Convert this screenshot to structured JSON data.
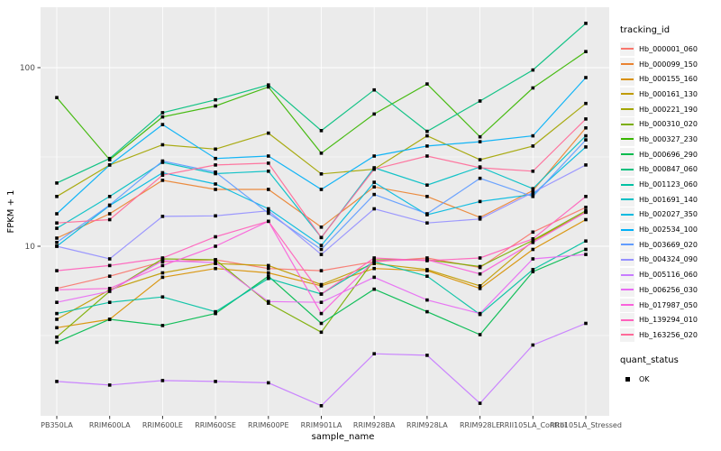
{
  "chart_data": {
    "type": "line",
    "title": "",
    "xlabel": "sample_name",
    "ylabel": "FPKM + 1",
    "y_scale": "log10",
    "y_ticks": [
      10,
      100
    ],
    "y_minor_gridlines": [
      3.162,
      31.62
    ],
    "ylim": [
      1.1,
      215
    ],
    "grid": true,
    "panel_bg": "#EBEBEB",
    "grid_color": "#FFFFFF",
    "point_marker": "black-square",
    "legend_position": "right",
    "legend_title": "tracking_id",
    "categories": [
      "PB350LA",
      "RRIM600LA",
      "RRIM600LE",
      "RRIM600SE",
      "RRIM600PE",
      "RRIM901LA",
      "RRIM928BA",
      "RRIM928LA",
      "RRIM928LE",
      "RRII105LA_Control",
      "RRII105LA_Stressed"
    ],
    "series": [
      {
        "name": "Hb_000001_060",
        "color": "#F8766D",
        "values": [
          5.8,
          6.8,
          8.2,
          8.4,
          7.5,
          7.3,
          8.2,
          8.6,
          7.6,
          12.0,
          16.5
        ]
      },
      {
        "name": "Hb_000099_150",
        "color": "#EA8331",
        "values": [
          11.1,
          15.2,
          23.4,
          20.8,
          20.8,
          12.8,
          21.5,
          19.0,
          14.5,
          20.5,
          46
        ]
      },
      {
        "name": "Hb_000155_160",
        "color": "#D89000",
        "values": [
          3.5,
          3.9,
          6.7,
          7.5,
          7.1,
          6.0,
          7.5,
          7.3,
          5.8,
          9.6,
          14.1
        ]
      },
      {
        "name": "Hb_000161_130",
        "color": "#C09B00",
        "values": [
          3.9,
          5.7,
          7.1,
          8.0,
          7.8,
          6.1,
          8.0,
          7.4,
          6.0,
          10.7,
          15.5
        ]
      },
      {
        "name": "Hb_000221_190",
        "color": "#A3A500",
        "values": [
          19,
          28.5,
          37,
          35,
          43,
          25.4,
          27,
          41.5,
          30.5,
          36.4,
          63
        ]
      },
      {
        "name": "Hb_000310_020",
        "color": "#7CAE00",
        "values": [
          3.1,
          5.6,
          8.5,
          8.4,
          4.8,
          3.3,
          8.4,
          8.4,
          7.7,
          10.8,
          15.8
        ]
      },
      {
        "name": "Hb_000327_230",
        "color": "#39B600",
        "values": [
          68,
          30.5,
          53,
          61,
          78,
          33.2,
          55,
          81,
          41,
          77,
          123
        ]
      },
      {
        "name": "Hb_000696_290",
        "color": "#00BB4E",
        "values": [
          2.9,
          3.9,
          3.6,
          4.2,
          6.8,
          3.7,
          5.75,
          4.3,
          3.2,
          7.2,
          9.6
        ]
      },
      {
        "name": "Hb_000847_060",
        "color": "#00BF7D",
        "values": [
          22.6,
          31,
          56,
          66,
          80,
          44.4,
          75,
          44,
          65,
          97,
          177
        ]
      },
      {
        "name": "Hb_001123_060",
        "color": "#00C1A3",
        "values": [
          4.2,
          4.85,
          5.2,
          4.3,
          6.6,
          5.4,
          8.2,
          6.8,
          4.15,
          7.4,
          10.7
        ]
      },
      {
        "name": "Hb_001691_140",
        "color": "#00BFC4",
        "values": [
          12.6,
          19,
          29.5,
          25.5,
          26.3,
          11.2,
          27.5,
          22,
          27.8,
          21,
          41.5
        ]
      },
      {
        "name": "Hb_002027_350",
        "color": "#00BAE0",
        "values": [
          10,
          16.9,
          25.8,
          22.3,
          16.2,
          10.1,
          22.8,
          15,
          17.8,
          19.5,
          36
        ]
      },
      {
        "name": "Hb_002534_100",
        "color": "#00B0F6",
        "values": [
          15.2,
          28.5,
          48,
          31,
          32,
          20.8,
          32,
          36.4,
          38.5,
          41.5,
          88
        ]
      },
      {
        "name": "Hb_003669_020",
        "color": "#619CFF",
        "values": [
          10.5,
          17,
          30,
          26,
          15.3,
          9.6,
          19.5,
          15.2,
          24,
          19,
          39.4
        ]
      },
      {
        "name": "Hb_004324_090",
        "color": "#9590FF",
        "values": [
          10,
          8.5,
          14.7,
          14.8,
          15.8,
          9.0,
          16.2,
          13.5,
          14.2,
          20,
          28.5
        ]
      },
      {
        "name": "Hb_005116_060",
        "color": "#C77CFF",
        "values": [
          1.75,
          1.67,
          1.77,
          1.75,
          1.72,
          1.28,
          2.5,
          2.45,
          1.32,
          2.8,
          3.7
        ]
      },
      {
        "name": "Hb_006256_030",
        "color": "#E76BF3",
        "values": [
          4.85,
          5.6,
          8.3,
          8.1,
          4.9,
          4.85,
          6.7,
          5.0,
          4.2,
          8.5,
          9.0
        ]
      },
      {
        "name": "Hb_017987_050",
        "color": "#FA62DB",
        "values": [
          5.7,
          5.8,
          7.8,
          10,
          13.8,
          4.2,
          8.3,
          8.4,
          7.0,
          10.5,
          15.5
        ]
      },
      {
        "name": "Hb_139294_010",
        "color": "#FF62BC",
        "values": [
          7.3,
          7.8,
          8.6,
          11.3,
          13.8,
          5.4,
          8.6,
          8.3,
          8.6,
          11,
          19
        ]
      },
      {
        "name": "Hb_163256_020",
        "color": "#FF6A98",
        "values": [
          13.5,
          14.1,
          25,
          28.5,
          29.2,
          11.2,
          27,
          32,
          27.5,
          26.3,
          51.6
        ]
      }
    ],
    "quant_legend": {
      "title": "quant_status",
      "items": [
        {
          "label": "OK",
          "marker": "black-square"
        }
      ]
    }
  }
}
